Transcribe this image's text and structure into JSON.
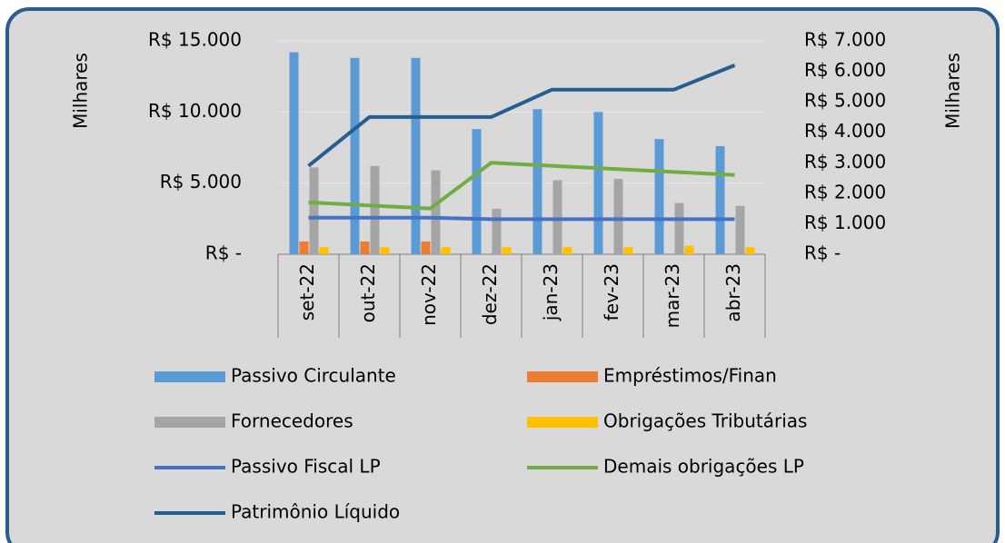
{
  "chart_data": {
    "type": "combo",
    "ylabel": "Milhares",
    "y2label": "Milhares",
    "categories": [
      "set-22",
      "out-22",
      "nov-22",
      "dez-22",
      "jan-23",
      "fev-23",
      "mar-23",
      "abr-23"
    ],
    "ylim": [
      0,
      15000
    ],
    "yticks": [
      {
        "value": 0,
        "label": "R$ -"
      },
      {
        "value": 5000,
        "label": "R$ 5.000"
      },
      {
        "value": 10000,
        "label": "R$ 10.000"
      },
      {
        "value": 15000,
        "label": "R$ 15.000"
      }
    ],
    "y2lim": [
      0,
      7000
    ],
    "y2ticks": [
      {
        "value": 0,
        "label": "R$ -"
      },
      {
        "value": 1000,
        "label": "R$ 1.000"
      },
      {
        "value": 2000,
        "label": "R$ 2.000"
      },
      {
        "value": 3000,
        "label": "R$ 3.000"
      },
      {
        "value": 4000,
        "label": "R$ 4.000"
      },
      {
        "value": 5000,
        "label": "R$ 5.000"
      },
      {
        "value": 6000,
        "label": "R$ 6.000"
      },
      {
        "value": 7000,
        "label": "R$ 7.000"
      }
    ],
    "grid": true,
    "series": [
      {
        "name": "Passivo Circulante",
        "type": "bar",
        "color": "#5b9bd5",
        "values": [
          14200,
          13800,
          13800,
          8800,
          10200,
          10000,
          8100,
          7600
        ]
      },
      {
        "name": "Empréstimos/Finan",
        "type": "bar",
        "color": "#ed7d31",
        "values": [
          900,
          900,
          900,
          0,
          0,
          0,
          0,
          0
        ]
      },
      {
        "name": "Fornecedores",
        "type": "bar",
        "color": "#a5a5a5",
        "values": [
          6100,
          6200,
          5900,
          3200,
          5200,
          5300,
          3600,
          3400
        ]
      },
      {
        "name": "Obrigações Tributárias",
        "type": "bar",
        "color": "#ffc000",
        "values": [
          500,
          500,
          500,
          500,
          500,
          500,
          600,
          500
        ]
      },
      {
        "name": "Passivo Fiscal LP",
        "type": "line",
        "axis": "y2",
        "color": "#4472c4",
        "values": [
          1200,
          1200,
          1200,
          1150,
          1150,
          1150,
          1150,
          1150
        ]
      },
      {
        "name": "Demais obrigações LP",
        "type": "line",
        "axis": "y2",
        "color": "#70ad47",
        "values": [
          1700,
          1600,
          1500,
          3000,
          2900,
          2800,
          2700,
          2600
        ]
      },
      {
        "name": "Patrimônio Líquido",
        "type": "line",
        "axis": "y2",
        "color": "#255e91",
        "values": [
          2900,
          4500,
          4500,
          4500,
          5400,
          5400,
          5400,
          6200
        ]
      }
    ]
  }
}
